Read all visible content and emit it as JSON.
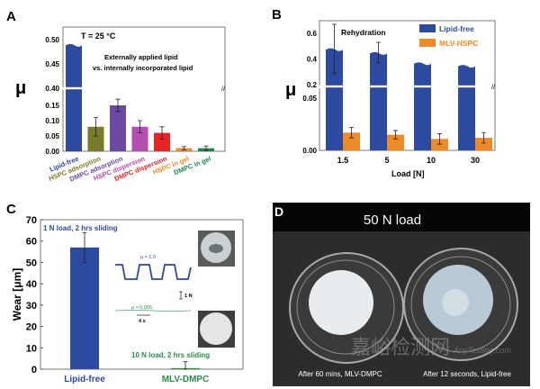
{
  "chart_data": [
    {
      "panel": "A",
      "type": "bar",
      "title": "T = 25 °C",
      "annotation": "Externally applied lipid vs. internally incorporated lipid",
      "annotation_lines": [
        "Externally applied lipid",
        "vs. internally incorporated lipid"
      ],
      "ylabel": "μ",
      "y_break": [
        0.16,
        0.4
      ],
      "yticks_lower": [
        "0.00",
        "0.05",
        "0.10",
        "0.15"
      ],
      "yticks_upper": [
        "0.40",
        "0.45",
        "0.50"
      ],
      "categories": [
        "Lipid-free",
        "HSPC adsorption",
        "DMPC adsorption",
        "HSPC dispersion",
        "DMPC dispersion",
        "HSPC in gel",
        "DMPC in gel"
      ],
      "values": [
        0.49,
        0.08,
        0.15,
        0.08,
        0.06,
        0.01,
        0.01
      ],
      "errors": [
        0,
        0.03,
        0.02,
        0.02,
        0.02,
        0.005,
        0.007
      ],
      "colors": [
        "#2b4aa0",
        "#7a7a2c",
        "#6b48a2",
        "#b24fb0",
        "#e82424",
        "#ef8a22",
        "#1c8a48"
      ]
    },
    {
      "panel": "B",
      "type": "bar",
      "title": "Rehydration",
      "xlabel": "Load [N]",
      "ylabel": "μ",
      "y_break": [
        0.06,
        0.2
      ],
      "yticks_lower": [
        "0.00",
        "0.05"
      ],
      "yticks_upper": [
        "0.2",
        "0.4",
        "0.6"
      ],
      "categories": [
        "1.5",
        "5",
        "10",
        "30"
      ],
      "legend_position": "top-right",
      "series": [
        {
          "name": "Lipid-free",
          "color": "#2b4aa0",
          "values": [
            0.48,
            0.45,
            0.37,
            0.35
          ],
          "errors": [
            0.19,
            0.08,
            0,
            0
          ]
        },
        {
          "name": "MLV-HSPC",
          "color": "#f08a24",
          "values": [
            0.017,
            0.015,
            0.011,
            0.012
          ],
          "errors": [
            0.005,
            0.004,
            0.005,
            0.005
          ]
        }
      ]
    },
    {
      "panel": "C",
      "type": "bar",
      "ylabel": "Wear [μm]",
      "ylim": [
        0,
        70
      ],
      "yticks": [
        "0",
        "10",
        "20",
        "30",
        "40",
        "50",
        "60",
        "70"
      ],
      "categories": [
        "Lipid-free",
        "MLV-DMPC"
      ],
      "values": [
        57,
        0.5
      ],
      "errors": [
        7,
        3
      ],
      "colors": [
        "#2b4aa0",
        "#2e8a4a"
      ],
      "annotations": {
        "lipid_free": "1 N load, 2 hrs sliding",
        "mlv": "10 N load, 2 hrs sliding",
        "mu_high": "μ ≈ 1.0",
        "mu_low": "μ ≈ 0.005",
        "scale_force": "1 N",
        "scale_time": "4 s"
      }
    }
  ],
  "panels": {
    "A": "A",
    "B": "B",
    "C": "C",
    "D": "D"
  },
  "photo": {
    "title": "50 N load",
    "left_caption": "After 60 mins, MLV-DMPC",
    "right_caption": "After 12 seconds, Lipid-free",
    "watermark": "嘉峪检测网",
    "watermark_sub": "AnyTesting.com"
  }
}
